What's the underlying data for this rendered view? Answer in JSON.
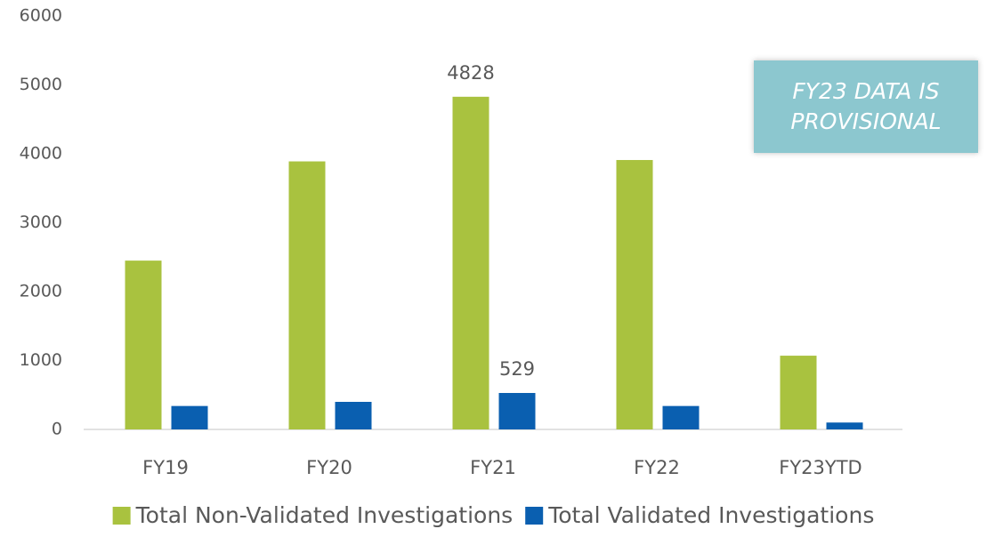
{
  "chart_data": {
    "type": "bar",
    "categories": [
      "FY19",
      "FY20",
      "FY21",
      "FY22",
      "FY23YTD"
    ],
    "series": [
      {
        "name": "Total Non-Validated Investigations",
        "color": "#a9c23f",
        "values": [
          2450,
          3890,
          4828,
          3910,
          1070
        ],
        "value_labels": [
          null,
          null,
          "4828",
          null,
          null
        ]
      },
      {
        "name": "Total Validated Investigations",
        "color": "#0a5fb0",
        "values": [
          340,
          400,
          529,
          340,
          100
        ],
        "value_labels": [
          null,
          null,
          "529",
          null,
          null
        ]
      }
    ],
    "ylim": [
      0,
      6000
    ],
    "yticks": [
      0,
      1000,
      2000,
      3000,
      4000,
      5000,
      6000
    ],
    "grid": false,
    "legend": "bottom",
    "annotation": "FY23 DATA IS PROVISIONAL"
  }
}
